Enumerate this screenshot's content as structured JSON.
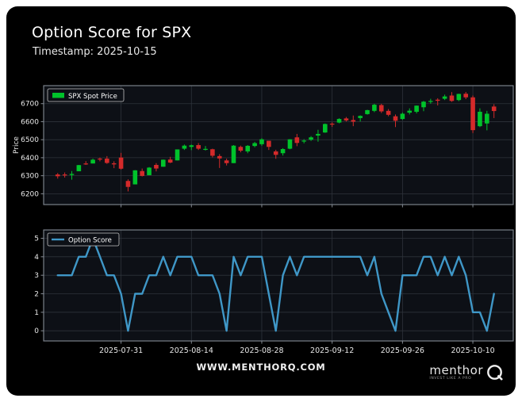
{
  "page": {
    "title": "Option Score for SPX",
    "subtitle": "Timestamp: 2025-10-15"
  },
  "footer": {
    "website": "WWW.MENTHORQ.COM",
    "logo_text": "menthor",
    "logo_tagline": "INVEST LIKE A PRO",
    "logo_q": "Q"
  },
  "colors": {
    "canvas": "#000000",
    "panel": "#0d1016",
    "grid": "#2e333b",
    "border": "#848b94",
    "tick_text": "#e8e8e8",
    "title_text": "#ffffff",
    "green": "#00c32b",
    "red": "#d42a2a",
    "blue": "#3f97c7",
    "legend_bg": "#0d1016",
    "legend_border": "#c0c0c0"
  },
  "chart_data": [
    {
      "type": "candlestick",
      "legend": "SPX Spot Price",
      "ylabel": "Price",
      "yticks": [
        6200,
        6300,
        6400,
        6500,
        6600,
        6700
      ],
      "ylim": [
        6140,
        6800
      ],
      "grid": true,
      "legend_position": "upper-left",
      "dates": [
        "2025-07-18",
        "2025-07-21",
        "2025-07-22",
        "2025-07-23",
        "2025-07-24",
        "2025-07-25",
        "2025-07-28",
        "2025-07-29",
        "2025-07-30",
        "2025-07-31",
        "2025-08-01",
        "2025-08-04",
        "2025-08-05",
        "2025-08-06",
        "2025-08-07",
        "2025-08-08",
        "2025-08-11",
        "2025-08-12",
        "2025-08-13",
        "2025-08-14",
        "2025-08-15",
        "2025-08-18",
        "2025-08-19",
        "2025-08-20",
        "2025-08-21",
        "2025-08-22",
        "2025-08-25",
        "2025-08-26",
        "2025-08-27",
        "2025-08-28",
        "2025-08-29",
        "2025-09-02",
        "2025-09-03",
        "2025-09-04",
        "2025-09-05",
        "2025-09-08",
        "2025-09-09",
        "2025-09-10",
        "2025-09-11",
        "2025-09-12",
        "2025-09-15",
        "2025-09-16",
        "2025-09-17",
        "2025-09-18",
        "2025-09-19",
        "2025-09-22",
        "2025-09-23",
        "2025-09-24",
        "2025-09-25",
        "2025-09-26",
        "2025-09-29",
        "2025-09-30",
        "2025-10-01",
        "2025-10-02",
        "2025-10-03",
        "2025-10-06",
        "2025-10-07",
        "2025-10-08",
        "2025-10-09",
        "2025-10-10",
        "2025-10-13",
        "2025-10-14",
        "2025-10-15"
      ],
      "ohlc": [
        [
          6307,
          6315,
          6284,
          6297
        ],
        [
          6307,
          6318,
          6290,
          6306
        ],
        [
          6304,
          6326,
          6278,
          6310
        ],
        [
          6325,
          6360,
          6325,
          6359
        ],
        [
          6368,
          6381,
          6360,
          6363
        ],
        [
          6368,
          6395,
          6368,
          6389
        ],
        [
          6395,
          6401,
          6380,
          6390
        ],
        [
          6395,
          6409,
          6366,
          6371
        ],
        [
          6369,
          6380,
          6342,
          6363
        ],
        [
          6401,
          6427,
          6334,
          6339
        ],
        [
          6271,
          6280,
          6213,
          6238
        ],
        [
          6252,
          6331,
          6252,
          6330
        ],
        [
          6326,
          6340,
          6296,
          6299
        ],
        [
          6303,
          6348,
          6303,
          6345
        ],
        [
          6360,
          6370,
          6324,
          6340
        ],
        [
          6350,
          6390,
          6350,
          6389
        ],
        [
          6390,
          6405,
          6370,
          6373
        ],
        [
          6385,
          6446,
          6385,
          6446
        ],
        [
          6450,
          6473,
          6443,
          6467
        ],
        [
          6460,
          6473,
          6442,
          6469
        ],
        [
          6470,
          6481,
          6443,
          6450
        ],
        [
          6449,
          6465,
          6440,
          6449
        ],
        [
          6447,
          6450,
          6402,
          6411
        ],
        [
          6409,
          6420,
          6343,
          6396
        ],
        [
          6385,
          6395,
          6357,
          6370
        ],
        [
          6370,
          6470,
          6370,
          6467
        ],
        [
          6460,
          6467,
          6430,
          6439
        ],
        [
          6435,
          6470,
          6425,
          6466
        ],
        [
          6465,
          6488,
          6458,
          6481
        ],
        [
          6475,
          6508,
          6466,
          6502
        ],
        [
          6494,
          6494,
          6443,
          6460
        ],
        [
          6435,
          6444,
          6394,
          6416
        ],
        [
          6425,
          6453,
          6412,
          6448
        ],
        [
          6450,
          6503,
          6447,
          6502
        ],
        [
          6513,
          6532,
          6464,
          6482
        ],
        [
          6492,
          6503,
          6480,
          6495
        ],
        [
          6500,
          6520,
          6493,
          6513
        ],
        [
          6523,
          6555,
          6489,
          6532
        ],
        [
          6540,
          6590,
          6538,
          6587
        ],
        [
          6589,
          6596,
          6571,
          6584
        ],
        [
          6595,
          6619,
          6591,
          6615
        ],
        [
          6618,
          6626,
          6601,
          6607
        ],
        [
          6609,
          6634,
          6575,
          6600
        ],
        [
          6620,
          6635,
          6601,
          6632
        ],
        [
          6642,
          6666,
          6639,
          6664
        ],
        [
          6660,
          6699,
          6653,
          6694
        ],
        [
          6692,
          6699,
          6648,
          6657
        ],
        [
          6660,
          6670,
          6630,
          6638
        ],
        [
          6630,
          6640,
          6570,
          6605
        ],
        [
          6615,
          6651,
          6610,
          6644
        ],
        [
          6650,
          6674,
          6640,
          6661
        ],
        [
          6655,
          6690,
          6646,
          6689
        ],
        [
          6680,
          6715,
          6658,
          6711
        ],
        [
          6710,
          6727,
          6700,
          6715
        ],
        [
          6722,
          6730,
          6690,
          6716
        ],
        [
          6727,
          6750,
          6720,
          6740
        ],
        [
          6745,
          6764,
          6710,
          6715
        ],
        [
          6720,
          6755,
          6714,
          6754
        ],
        [
          6755,
          6765,
          6725,
          6735
        ],
        [
          6735,
          6745,
          6537,
          6553
        ],
        [
          6575,
          6674,
          6570,
          6655
        ],
        [
          6590,
          6660,
          6552,
          6644
        ],
        [
          6684,
          6697,
          6620,
          6659
        ]
      ],
      "xtick_indices": [
        9,
        19,
        29,
        39,
        49,
        59
      ],
      "xtick_labels": [
        "2025-07-31",
        "2025-08-14",
        "2025-08-28",
        "2025-09-12",
        "2025-09-26",
        "2025-10-10"
      ],
      "show_xtick_labels": false
    },
    {
      "type": "line",
      "legend": "Option Score",
      "ylabel": "",
      "yticks": [
        0,
        1,
        2,
        3,
        4,
        5
      ],
      "ylim": [
        -0.55,
        5.45
      ],
      "grid": true,
      "legend_position": "upper-left",
      "values": [
        3,
        3,
        3,
        4,
        4,
        5,
        4,
        3,
        3,
        2,
        0,
        2,
        2,
        3,
        3,
        4,
        3,
        4,
        4,
        4,
        3,
        3,
        3,
        2,
        0,
        4,
        3,
        4,
        4,
        4,
        2,
        0,
        3,
        4,
        3,
        4,
        4,
        4,
        4,
        4,
        4,
        4,
        4,
        4,
        3,
        4,
        2,
        1,
        0,
        3,
        3,
        3,
        4,
        4,
        3,
        4,
        3,
        4,
        3,
        1,
        1,
        0,
        2
      ],
      "xtick_indices": [
        9,
        19,
        29,
        39,
        49,
        59
      ],
      "xtick_labels": [
        "2025-07-31",
        "2025-08-14",
        "2025-08-28",
        "2025-09-12",
        "2025-09-26",
        "2025-10-10"
      ],
      "show_xtick_labels": true
    }
  ]
}
